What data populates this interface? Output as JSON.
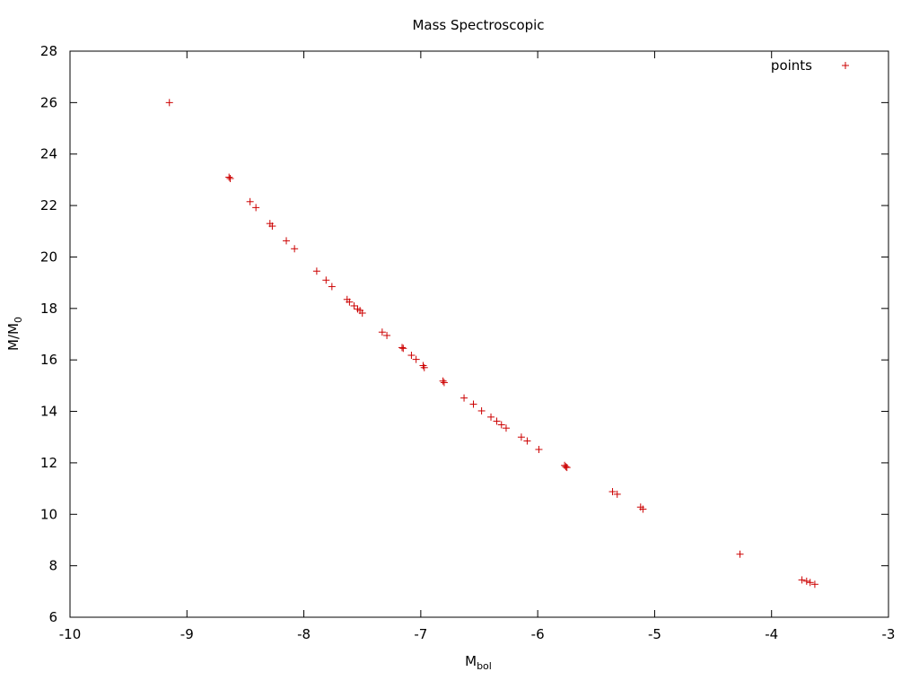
{
  "chart_data": {
    "type": "scatter",
    "title": "Mass Spectroscopic",
    "xlabel": {
      "base": "M",
      "sub": "bol"
    },
    "ylabel": {
      "base": "M/M",
      "sub": "0"
    },
    "xlim": [
      -10,
      -3
    ],
    "ylim": [
      6,
      28
    ],
    "xticks": [
      -10,
      -9,
      -8,
      -7,
      -6,
      -5,
      -4,
      -3
    ],
    "yticks": [
      6,
      8,
      10,
      12,
      14,
      16,
      18,
      20,
      22,
      24,
      26,
      28
    ],
    "grid": false,
    "legend_position": "top-right",
    "series": [
      {
        "name": "points",
        "color": "#cc0000",
        "marker": "plus",
        "points": [
          [
            -9.15,
            26.0
          ],
          [
            -8.64,
            23.1
          ],
          [
            -8.63,
            23.05
          ],
          [
            -8.46,
            22.15
          ],
          [
            -8.41,
            21.92
          ],
          [
            -8.29,
            21.3
          ],
          [
            -8.27,
            21.2
          ],
          [
            -8.15,
            20.63
          ],
          [
            -8.08,
            20.32
          ],
          [
            -7.89,
            19.45
          ],
          [
            -7.81,
            19.1
          ],
          [
            -7.76,
            18.85
          ],
          [
            -7.63,
            18.35
          ],
          [
            -7.61,
            18.25
          ],
          [
            -7.57,
            18.1
          ],
          [
            -7.54,
            17.98
          ],
          [
            -7.52,
            17.92
          ],
          [
            -7.5,
            17.82
          ],
          [
            -7.33,
            17.08
          ],
          [
            -7.29,
            16.95
          ],
          [
            -7.16,
            16.48
          ],
          [
            -7.15,
            16.45
          ],
          [
            -7.08,
            16.18
          ],
          [
            -7.04,
            16.02
          ],
          [
            -6.98,
            15.78
          ],
          [
            -6.97,
            15.7
          ],
          [
            -6.81,
            15.18
          ],
          [
            -6.8,
            15.12
          ],
          [
            -6.63,
            14.52
          ],
          [
            -6.55,
            14.28
          ],
          [
            -6.48,
            14.02
          ],
          [
            -6.4,
            13.78
          ],
          [
            -6.35,
            13.62
          ],
          [
            -6.31,
            13.48
          ],
          [
            -6.27,
            13.35
          ],
          [
            -6.14,
            13.0
          ],
          [
            -6.09,
            12.85
          ],
          [
            -5.99,
            12.52
          ],
          [
            -5.77,
            11.9
          ],
          [
            -5.76,
            11.85
          ],
          [
            -5.75,
            11.82
          ],
          [
            -5.36,
            10.88
          ],
          [
            -5.32,
            10.78
          ],
          [
            -5.12,
            10.28
          ],
          [
            -5.1,
            10.2
          ],
          [
            -4.27,
            8.45
          ],
          [
            -3.74,
            7.45
          ],
          [
            -3.7,
            7.4
          ],
          [
            -3.67,
            7.35
          ],
          [
            -3.63,
            7.28
          ]
        ]
      }
    ]
  }
}
